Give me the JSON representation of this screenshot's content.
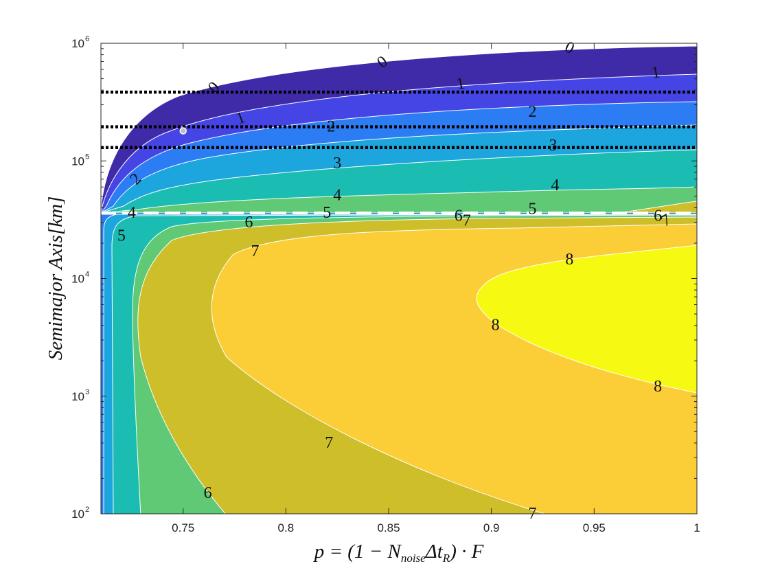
{
  "chart_data": {
    "type": "heatmap",
    "subtype": "filled-contour",
    "x": {
      "label_parts": [
        "p = (1 − N",
        "noise",
        "Δt",
        "R",
        ") · F"
      ],
      "lim": [
        0.71,
        1.0
      ],
      "scale": "linear",
      "ticks": [
        0.75,
        0.8,
        0.85,
        0.9,
        0.95,
        1
      ],
      "tick_labels": [
        "0.75",
        "0.8",
        "0.85",
        "0.9",
        "0.95",
        "1"
      ]
    },
    "y": {
      "label": "Semimajor Axis[km]",
      "lim": [
        100,
        1000000
      ],
      "scale": "log",
      "ticks": [
        100,
        1000,
        10000,
        100000,
        1000000
      ],
      "tick_base": "10",
      "tick_exponents": [
        "2",
        "3",
        "4",
        "5",
        "6"
      ]
    },
    "levels": [
      0,
      1,
      2,
      3,
      4,
      5,
      6,
      7,
      8
    ],
    "colors": [
      "#3f2aa8",
      "#4545e6",
      "#2c7cf4",
      "#1da5de",
      "#1bbcb1",
      "#60c975",
      "#cdbe2a",
      "#fbcd36",
      "#f6f911"
    ],
    "horizontal_lines": [
      {
        "style": "dotted",
        "color": "#000000",
        "y": 384400
      },
      {
        "style": "dotted",
        "color": "#000000",
        "y": 195000
      },
      {
        "style": "dotted",
        "color": "#000000",
        "y": 130000
      },
      {
        "style": "dashed",
        "color": "#ffffff",
        "y": 36000
      }
    ],
    "marker": {
      "x": 0.75,
      "y": 180000,
      "color": "#bfbfbf"
    },
    "contour_labels": [
      {
        "text": "0",
        "x": 0.765,
        "y": 420000,
        "rotate": -45
      },
      {
        "text": "0",
        "x": 0.847,
        "y": 690000,
        "rotate": -35
      },
      {
        "text": "0",
        "x": 0.938,
        "y": 910000,
        "rotate": 25
      },
      {
        "text": "1",
        "x": 0.778,
        "y": 230000,
        "rotate": -20
      },
      {
        "text": "1",
        "x": 0.885,
        "y": 450000,
        "rotate": -10
      },
      {
        "text": "1",
        "x": 0.98,
        "y": 560000,
        "rotate": -10
      },
      {
        "text": "2",
        "x": 0.727,
        "y": 70000,
        "rotate": -45
      },
      {
        "text": "2",
        "x": 0.822,
        "y": 195000,
        "rotate": 0
      },
      {
        "text": "2",
        "x": 0.92,
        "y": 260000,
        "rotate": 0
      },
      {
        "text": "3",
        "x": 0.825,
        "y": 95000,
        "rotate": 0
      },
      {
        "text": "3",
        "x": 0.93,
        "y": 135000,
        "rotate": 0
      },
      {
        "text": "4",
        "x": 0.825,
        "y": 51000,
        "rotate": 0
      },
      {
        "text": "4",
        "x": 0.931,
        "y": 62000,
        "rotate": 0
      },
      {
        "text": "4",
        "x": 0.725,
        "y": 36000,
        "rotate": 0
      },
      {
        "text": "5",
        "x": 0.82,
        "y": 36000,
        "rotate": 0
      },
      {
        "text": "5",
        "x": 0.92,
        "y": 39000,
        "rotate": 0
      },
      {
        "text": "5",
        "x": 0.72,
        "y": 23000,
        "rotate": 0
      },
      {
        "text": "6",
        "x": 0.782,
        "y": 30000,
        "rotate": 0
      },
      {
        "text": "6",
        "x": 0.884,
        "y": 34000,
        "rotate": 0
      },
      {
        "text": "6",
        "x": 0.981,
        "y": 34000,
        "rotate": 0
      },
      {
        "text": "6",
        "x": 0.762,
        "y": 150,
        "rotate": 0
      },
      {
        "text": "7",
        "x": 0.888,
        "y": 31000,
        "rotate": 0
      },
      {
        "text": "7",
        "x": 0.985,
        "y": 31000,
        "rotate": -30
      },
      {
        "text": "7",
        "x": 0.785,
        "y": 17000,
        "rotate": 0
      },
      {
        "text": "7",
        "x": 0.821,
        "y": 400,
        "rotate": 0
      },
      {
        "text": "7",
        "x": 0.92,
        "y": 100,
        "rotate": 0
      },
      {
        "text": "8",
        "x": 0.938,
        "y": 14500,
        "rotate": 0
      },
      {
        "text": "8",
        "x": 0.902,
        "y": 4000,
        "rotate": 0
      },
      {
        "text": "8",
        "x": 0.981,
        "y": 1200,
        "rotate": 0
      }
    ],
    "grid": false,
    "legend": "none"
  }
}
